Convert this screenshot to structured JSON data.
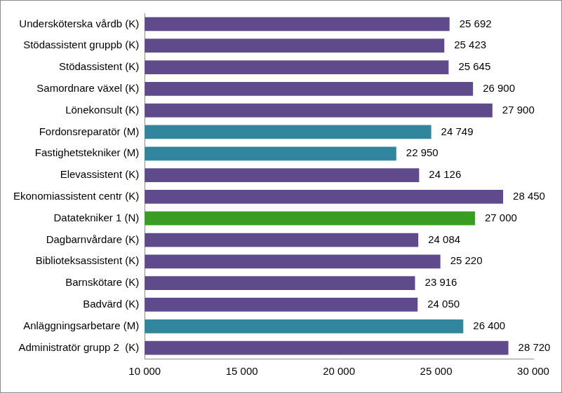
{
  "chart_data": {
    "type": "bar",
    "orientation": "horizontal",
    "categories": [
      "Undersköterska vårdb (K)",
      "Stödassistent gruppb (K)",
      "Stödassistent (K)",
      "Samordnare växel (K)",
      "Lönekonsult (K)",
      "Fordonsreparatör (M)",
      "Fastighetstekniker (M)",
      "Elevassistent (K)",
      "Ekonomiassistent centr (K)",
      "Datatekniker 1 (N)",
      "Dagbarnvårdare (K)",
      "Biblioteksassistent (K)",
      "Barnskötare (K)",
      "Badvärd (K)",
      "Anläggningsarbetare (M)",
      "Administratör grupp 2  (K)"
    ],
    "values": [
      25692,
      25423,
      25645,
      26900,
      27900,
      24749,
      22950,
      24126,
      28450,
      27000,
      24084,
      25220,
      23916,
      24050,
      26400,
      28720
    ],
    "value_labels": [
      "25 692",
      "25 423",
      "25 645",
      "26 900",
      "27 900",
      "24 749",
      "22 950",
      "24 126",
      "28 450",
      "27 000",
      "24 084",
      "25 220",
      "23 916",
      "24 050",
      "26 400",
      "28 720"
    ],
    "colors": [
      "#5f4b8b",
      "#5f4b8b",
      "#5f4b8b",
      "#5f4b8b",
      "#5f4b8b",
      "#31859c",
      "#31859c",
      "#5f4b8b",
      "#5f4b8b",
      "#3a9d23",
      "#5f4b8b",
      "#5f4b8b",
      "#5f4b8b",
      "#5f4b8b",
      "#31859c",
      "#5f4b8b"
    ],
    "xlim": [
      10000,
      30000
    ],
    "xticks": [
      {
        "value": 10000,
        "label": "10 000"
      },
      {
        "value": 15000,
        "label": "15 000"
      },
      {
        "value": 20000,
        "label": "20 000"
      },
      {
        "value": 25000,
        "label": "25 000"
      },
      {
        "value": 30000,
        "label": "30 000"
      }
    ],
    "grid": false,
    "data_labels": true
  }
}
